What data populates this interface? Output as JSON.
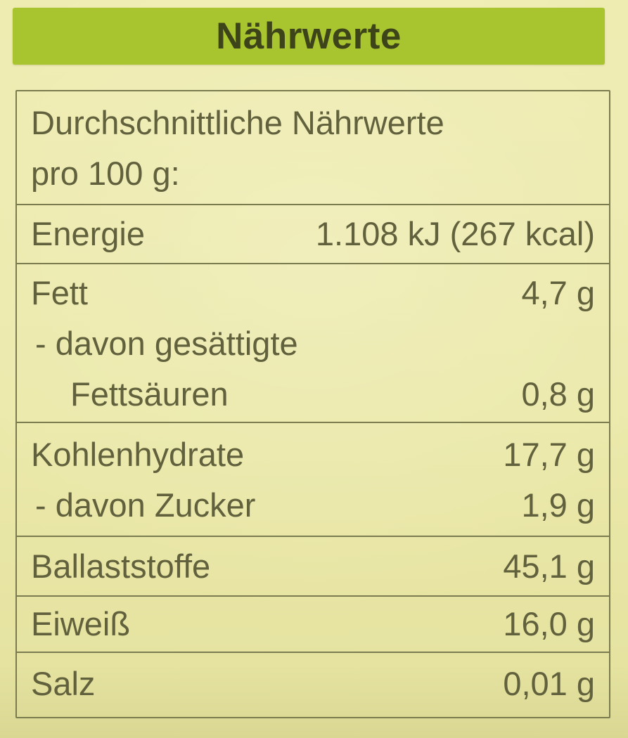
{
  "header": {
    "title": "Nährwerte"
  },
  "table": {
    "caption": {
      "line1": "Durchschnittliche Nährwerte",
      "line2": "pro 100 g:"
    },
    "rows": {
      "energie": {
        "label": "Energie",
        "value": "1.108 kJ (267 kcal)"
      },
      "fett": {
        "label": "Fett",
        "value": "4,7 g"
      },
      "fett_sub": {
        "line1": "- davon gesättigte",
        "line2": "Fettsäuren",
        "value": "0,8 g"
      },
      "kohlenhydrate": {
        "label": "Kohlenhydrate",
        "value": "17,7 g"
      },
      "zucker": {
        "label": "- davon Zucker",
        "value": "1,9 g"
      },
      "ballaststoffe": {
        "label": "Ballaststoffe",
        "value": "45,1 g"
      },
      "eiweiss": {
        "label": "Eiweiß",
        "value": "16,0 g"
      },
      "salz": {
        "label": "Salz",
        "value": "0,01 g"
      }
    }
  },
  "colors": {
    "background": "#ebe9a9",
    "header_green": "#a8c52f",
    "title_text": "#3e4419",
    "table_text": "#61613d",
    "table_line": "#7b7b50"
  }
}
